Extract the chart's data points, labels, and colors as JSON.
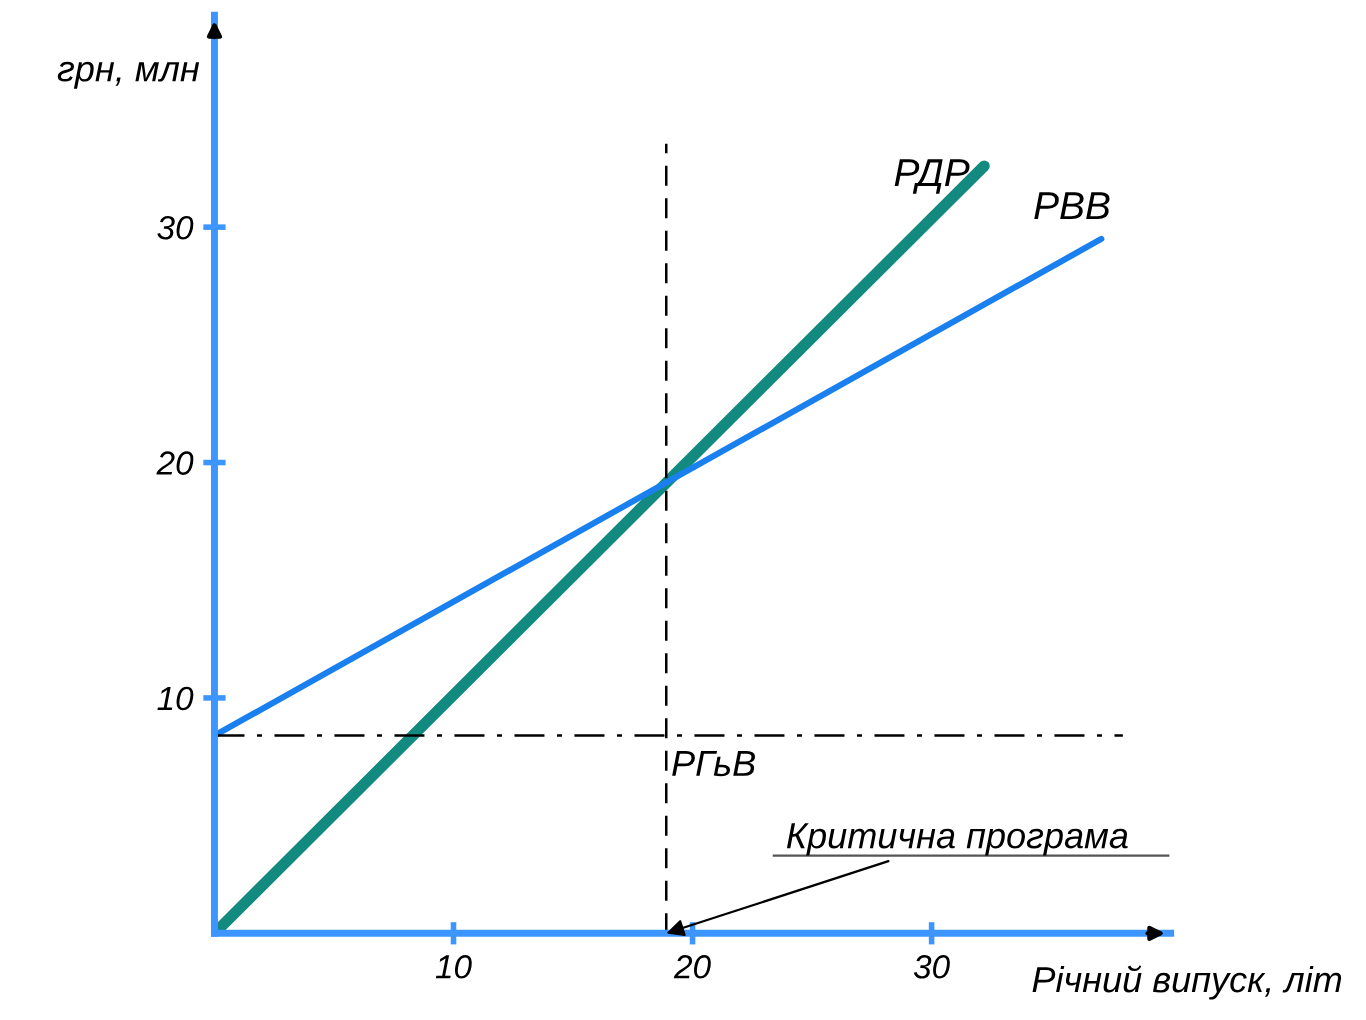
{
  "chart_data": {
    "type": "line",
    "xlabel": "Річний випуск, літ",
    "ylabel": "грн, млн",
    "series": [
      {
        "name": "РДР",
        "color": "#138a80",
        "x": [
          0,
          32.2
        ],
        "values": [
          0,
          32.6
        ]
      },
      {
        "name": "РВВ",
        "color": "#1a80f0",
        "x": [
          0,
          37.1
        ],
        "values": [
          8.4,
          29.5
        ]
      }
    ],
    "xlim": [
      0,
      40
    ],
    "ylim": [
      0,
      39
    ],
    "xticks": [
      10,
      20,
      30
    ],
    "yticks": [
      10,
      20,
      30
    ],
    "ref_lines": [
      {
        "axis": "x",
        "value": 18.9,
        "label": null,
        "color": "#000000",
        "line_style": "dashed"
      },
      {
        "axis": "y",
        "value": 8.4,
        "label": "РГьВ",
        "color": "#000000",
        "line_style": "dashdot"
      }
    ],
    "annotations": [
      {
        "text": "Критична програма",
        "x": 18.9,
        "y": 0
      }
    ],
    "grid": false,
    "legend": false,
    "marker": "none",
    "line_style": "solid"
  }
}
